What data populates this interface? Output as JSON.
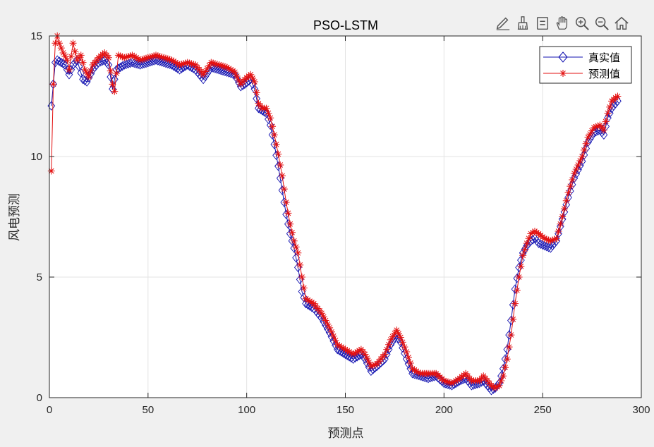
{
  "toolbar": {
    "icons": [
      "edit-icon",
      "brush-icon",
      "data-tips-icon",
      "pan-hand-icon",
      "zoom-in-icon",
      "zoom-out-icon",
      "home-icon"
    ]
  },
  "colors": {
    "true_series": "#1010b0",
    "pred_series": "#e31010",
    "axes_bg": "#ffffff",
    "figure_bg": "#f0f0f0",
    "grid": "#e3e3e3"
  },
  "chart_data": {
    "type": "line",
    "title": "PSO-LSTM",
    "xlabel": "预测点",
    "ylabel": "风电预测",
    "xlim": [
      0,
      300
    ],
    "ylim": [
      0,
      15
    ],
    "xticks": [
      0,
      50,
      100,
      150,
      200,
      250,
      300
    ],
    "yticks": [
      0,
      5,
      10,
      15
    ],
    "grid": true,
    "legend_position": "top-right",
    "x_start": 1,
    "x_end": 288,
    "series": [
      {
        "name": "真实值",
        "marker": "diamond",
        "color": "#1010b0",
        "keypoints": [
          [
            1,
            12.1
          ],
          [
            2,
            13.0
          ],
          [
            3,
            13.9
          ],
          [
            4,
            14.0
          ],
          [
            6,
            13.9
          ],
          [
            8,
            13.8
          ],
          [
            10,
            13.4
          ],
          [
            12,
            13.8
          ],
          [
            14,
            14.0
          ],
          [
            17,
            13.2
          ],
          [
            19,
            13.1
          ],
          [
            22,
            13.6
          ],
          [
            25,
            13.9
          ],
          [
            28,
            14.0
          ],
          [
            30,
            13.8
          ],
          [
            32,
            12.8
          ],
          [
            34,
            13.6
          ],
          [
            38,
            13.8
          ],
          [
            42,
            13.9
          ],
          [
            46,
            13.8
          ],
          [
            50,
            13.9
          ],
          [
            54,
            14.0
          ],
          [
            58,
            13.9
          ],
          [
            62,
            13.8
          ],
          [
            66,
            13.6
          ],
          [
            70,
            13.8
          ],
          [
            74,
            13.6
          ],
          [
            78,
            13.2
          ],
          [
            82,
            13.7
          ],
          [
            86,
            13.6
          ],
          [
            90,
            13.5
          ],
          [
            94,
            13.4
          ],
          [
            97,
            12.9
          ],
          [
            99,
            13.0
          ],
          [
            102,
            13.2
          ],
          [
            104,
            12.8
          ],
          [
            106,
            12.0
          ],
          [
            108,
            11.9
          ],
          [
            110,
            11.8
          ],
          [
            112,
            11.3
          ],
          [
            114,
            10.5
          ],
          [
            116,
            9.6
          ],
          [
            118,
            8.6
          ],
          [
            120,
            7.6
          ],
          [
            122,
            6.8
          ],
          [
            124,
            6.2
          ],
          [
            126,
            5.4
          ],
          [
            128,
            4.4
          ],
          [
            130,
            3.9
          ],
          [
            134,
            3.7
          ],
          [
            138,
            3.3
          ],
          [
            142,
            2.7
          ],
          [
            146,
            2.0
          ],
          [
            150,
            1.8
          ],
          [
            154,
            1.6
          ],
          [
            158,
            1.8
          ],
          [
            160,
            1.6
          ],
          [
            163,
            1.1
          ],
          [
            166,
            1.3
          ],
          [
            170,
            1.6
          ],
          [
            173,
            2.2
          ],
          [
            176,
            2.6
          ],
          [
            178,
            2.3
          ],
          [
            181,
            1.6
          ],
          [
            184,
            1.0
          ],
          [
            188,
            0.9
          ],
          [
            192,
            0.8
          ],
          [
            196,
            0.9
          ],
          [
            200,
            0.6
          ],
          [
            204,
            0.5
          ],
          [
            208,
            0.7
          ],
          [
            211,
            0.8
          ],
          [
            214,
            0.5
          ],
          [
            218,
            0.6
          ],
          [
            220,
            0.7
          ],
          [
            224,
            0.3
          ],
          [
            226,
            0.4
          ],
          [
            228,
            0.6
          ],
          [
            230,
            1.2
          ],
          [
            232,
            2.0
          ],
          [
            234,
            3.2
          ],
          [
            236,
            4.5
          ],
          [
            238,
            5.4
          ],
          [
            240,
            6.0
          ],
          [
            242,
            6.3
          ],
          [
            244,
            6.5
          ],
          [
            246,
            6.6
          ],
          [
            248,
            6.4
          ],
          [
            251,
            6.3
          ],
          [
            254,
            6.2
          ],
          [
            257,
            6.5
          ],
          [
            260,
            7.4
          ],
          [
            263,
            8.3
          ],
          [
            266,
            9.1
          ],
          [
            270,
            9.8
          ],
          [
            273,
            10.6
          ],
          [
            276,
            11.0
          ],
          [
            279,
            11.1
          ],
          [
            281,
            10.9
          ],
          [
            283,
            11.6
          ],
          [
            285,
            12.0
          ],
          [
            288,
            12.3
          ]
        ]
      },
      {
        "name": "预测值",
        "marker": "star",
        "color": "#e31010",
        "keypoints": [
          [
            1,
            9.4
          ],
          [
            2,
            13.0
          ],
          [
            3,
            14.7
          ],
          [
            4,
            15.0
          ],
          [
            5,
            14.7
          ],
          [
            7,
            14.3
          ],
          [
            9,
            14.0
          ],
          [
            10,
            13.6
          ],
          [
            12,
            14.7
          ],
          [
            14,
            14.0
          ],
          [
            16,
            14.2
          ],
          [
            18,
            13.6
          ],
          [
            20,
            13.3
          ],
          [
            22,
            13.8
          ],
          [
            25,
            14.1
          ],
          [
            28,
            14.3
          ],
          [
            30,
            14.1
          ],
          [
            32,
            13.0
          ],
          [
            33,
            12.7
          ],
          [
            35,
            14.2
          ],
          [
            38,
            14.1
          ],
          [
            42,
            14.2
          ],
          [
            46,
            14.0
          ],
          [
            50,
            14.1
          ],
          [
            54,
            14.2
          ],
          [
            58,
            14.1
          ],
          [
            62,
            14.0
          ],
          [
            66,
            13.8
          ],
          [
            70,
            13.9
          ],
          [
            74,
            13.8
          ],
          [
            78,
            13.4
          ],
          [
            82,
            13.9
          ],
          [
            86,
            13.8
          ],
          [
            90,
            13.7
          ],
          [
            94,
            13.5
          ],
          [
            97,
            13.0
          ],
          [
            99,
            13.2
          ],
          [
            102,
            13.4
          ],
          [
            104,
            13.1
          ],
          [
            106,
            12.2
          ],
          [
            108,
            12.0
          ],
          [
            110,
            12.0
          ],
          [
            112,
            11.6
          ],
          [
            114,
            10.9
          ],
          [
            116,
            10.1
          ],
          [
            118,
            9.2
          ],
          [
            120,
            8.1
          ],
          [
            122,
            7.2
          ],
          [
            124,
            6.5
          ],
          [
            126,
            6.0
          ],
          [
            128,
            5.0
          ],
          [
            130,
            4.1
          ],
          [
            134,
            3.9
          ],
          [
            138,
            3.5
          ],
          [
            142,
            2.9
          ],
          [
            146,
            2.2
          ],
          [
            150,
            2.0
          ],
          [
            154,
            1.8
          ],
          [
            158,
            2.0
          ],
          [
            160,
            1.8
          ],
          [
            163,
            1.3
          ],
          [
            166,
            1.4
          ],
          [
            170,
            1.8
          ],
          [
            173,
            2.4
          ],
          [
            176,
            2.8
          ],
          [
            178,
            2.5
          ],
          [
            181,
            1.9
          ],
          [
            184,
            1.2
          ],
          [
            188,
            1.0
          ],
          [
            192,
            1.0
          ],
          [
            196,
            1.0
          ],
          [
            200,
            0.7
          ],
          [
            204,
            0.6
          ],
          [
            208,
            0.8
          ],
          [
            211,
            1.0
          ],
          [
            214,
            0.7
          ],
          [
            218,
            0.7
          ],
          [
            220,
            0.9
          ],
          [
            224,
            0.5
          ],
          [
            226,
            0.4
          ],
          [
            228,
            0.5
          ],
          [
            230,
            0.9
          ],
          [
            232,
            1.6
          ],
          [
            234,
            2.6
          ],
          [
            236,
            3.9
          ],
          [
            238,
            5.0
          ],
          [
            240,
            5.9
          ],
          [
            242,
            6.4
          ],
          [
            244,
            6.8
          ],
          [
            246,
            6.9
          ],
          [
            248,
            6.8
          ],
          [
            251,
            6.6
          ],
          [
            254,
            6.5
          ],
          [
            257,
            6.6
          ],
          [
            260,
            7.5
          ],
          [
            263,
            8.5
          ],
          [
            266,
            9.3
          ],
          [
            270,
            10.0
          ],
          [
            273,
            10.8
          ],
          [
            276,
            11.2
          ],
          [
            279,
            11.3
          ],
          [
            281,
            11.1
          ],
          [
            283,
            11.8
          ],
          [
            285,
            12.3
          ],
          [
            288,
            12.5
          ]
        ]
      }
    ]
  }
}
